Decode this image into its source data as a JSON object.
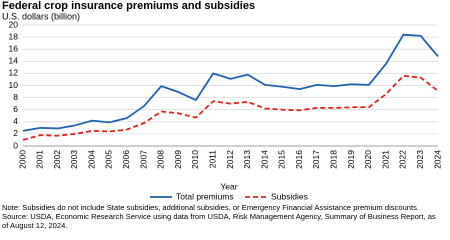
{
  "chart_data": {
    "type": "line",
    "title": "Federal crop insurance premiums and subsidies",
    "subtitle": "U.S. dollars (billion)",
    "x_label": "Year",
    "categories": [
      "2000",
      "2001",
      "2002",
      "2003",
      "2004",
      "2005",
      "2006",
      "2007",
      "2008",
      "2009",
      "2010",
      "2011",
      "2012",
      "2013",
      "2014",
      "2015",
      "2016",
      "2017",
      "2018",
      "2019",
      "2020",
      "2021",
      "2022",
      "2023",
      "2024"
    ],
    "series": [
      {
        "name": "Total premiums",
        "color": "#2062b0",
        "dash": false,
        "values": [
          2.5,
          3.0,
          2.9,
          3.4,
          4.2,
          3.9,
          4.6,
          6.6,
          9.9,
          8.9,
          7.6,
          12.0,
          11.1,
          11.8,
          10.1,
          9.8,
          9.4,
          10.1,
          9.9,
          10.2,
          10.1,
          13.6,
          18.4,
          18.2,
          14.8
        ]
      },
      {
        "name": "Subsidies",
        "color": "#e3201b",
        "dash": true,
        "values": [
          1.0,
          1.8,
          1.7,
          2.0,
          2.5,
          2.4,
          2.7,
          3.8,
          5.7,
          5.4,
          4.7,
          7.4,
          7.0,
          7.3,
          6.2,
          6.0,
          5.9,
          6.3,
          6.3,
          6.4,
          6.4,
          8.6,
          11.6,
          11.3,
          9.1
        ]
      }
    ],
    "ylim": [
      0,
      20
    ],
    "yticks": [
      0,
      2,
      4,
      6,
      8,
      10,
      12,
      14,
      16,
      18,
      20
    ],
    "grid": true,
    "notes": [
      "Note: Subsidies do not include State subsidies, additional subsidies, or Emergency Financial Assistance premium discounts.",
      "Source: USDA, Economic Research Service using data from USDA, Risk Management Agency, Summary of Business Report, as",
      "of August 12, 2024."
    ]
  }
}
